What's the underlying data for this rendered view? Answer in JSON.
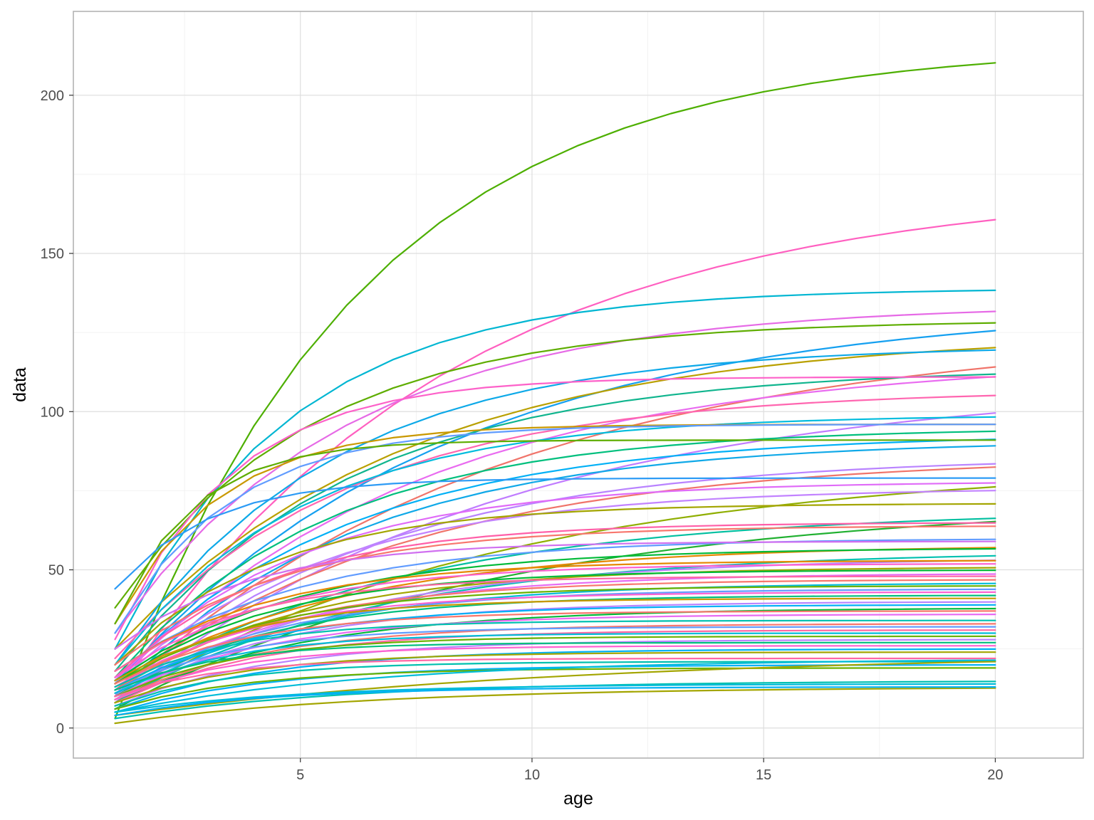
{
  "chart_data": {
    "type": "line",
    "title": "",
    "xlabel": "age",
    "ylabel": "data",
    "xlim": [
      0.1,
      21.9
    ],
    "ylim": [
      -9.5,
      226.5
    ],
    "x_ticks": [
      5,
      10,
      15,
      20
    ],
    "y_ticks": [
      0,
      50,
      100,
      150,
      200
    ],
    "x_tick_labels": [
      "5",
      "10",
      "15",
      "20"
    ],
    "y_tick_labels": [
      "0",
      "50",
      "100",
      "150",
      "200"
    ],
    "grid": true,
    "legend": "none",
    "x": [
      1,
      2,
      3,
      4,
      5,
      6,
      7,
      8,
      9,
      10,
      11,
      12,
      13,
      14,
      15,
      16,
      17,
      18,
      19,
      20
    ],
    "palette": [
      "#F8766D",
      "#E58700",
      "#C99800",
      "#A3A500",
      "#6BB100",
      "#00BA38",
      "#00BF7D",
      "#00C0AF",
      "#00BCD8",
      "#00B0F6",
      "#619CFF",
      "#B983FF",
      "#E76BF3",
      "#FD61D1",
      "#FF67A4"
    ],
    "curves": [
      {
        "start": 3,
        "end": 216,
        "k": 0.19,
        "color": "#4DAF00"
      },
      {
        "start": 10,
        "end": 172,
        "k": 0.14,
        "color": "#FF5FC0"
      },
      {
        "start": 25,
        "end": 139,
        "k": 0.27,
        "color": "#00B6D2"
      },
      {
        "start": 30,
        "end": 134,
        "k": 0.2,
        "color": "#E66AE6"
      },
      {
        "start": 14,
        "end": 134,
        "k": 0.14,
        "color": "#15A0F0"
      },
      {
        "start": 38,
        "end": 129,
        "k": 0.24,
        "color": "#5EAD00"
      },
      {
        "start": 10,
        "end": 126,
        "k": 0.12,
        "color": "#F0746A"
      },
      {
        "start": 25,
        "end": 125,
        "k": 0.16,
        "color": "#B9A000"
      },
      {
        "start": 20,
        "end": 121,
        "k": 0.22,
        "color": "#0DA9E8"
      },
      {
        "start": 14,
        "end": 117,
        "k": 0.15,
        "color": "#E96BF0"
      },
      {
        "start": 18,
        "end": 114,
        "k": 0.2,
        "color": "#10B58E"
      },
      {
        "start": 28,
        "end": 111,
        "k": 0.4,
        "color": "#FD61C9"
      },
      {
        "start": 8,
        "end": 110,
        "k": 0.12,
        "color": "#C07CFF"
      },
      {
        "start": 22,
        "end": 107,
        "k": 0.2,
        "color": "#FF66B0"
      },
      {
        "start": 20,
        "end": 99,
        "k": 0.25,
        "color": "#00BCDD"
      },
      {
        "start": 33,
        "end": 96,
        "k": 0.45,
        "color": "#C99800"
      },
      {
        "start": 30,
        "end": 96,
        "k": 0.4,
        "color": "#619CFF"
      },
      {
        "start": 16,
        "end": 95,
        "k": 0.22,
        "color": "#00BF7D"
      },
      {
        "start": 15,
        "end": 93,
        "k": 0.2,
        "color": "#00B0F6"
      },
      {
        "start": 33,
        "end": 91,
        "k": 0.6,
        "color": "#5EAD00"
      },
      {
        "start": 10,
        "end": 91,
        "k": 0.2,
        "color": "#10A9E8"
      },
      {
        "start": 10,
        "end": 86,
        "k": 0.18,
        "color": "#B983FF"
      },
      {
        "start": 12,
        "end": 86,
        "k": 0.16,
        "color": "#F0746A"
      },
      {
        "start": 8,
        "end": 84,
        "k": 0.12,
        "color": "#8FAE00"
      },
      {
        "start": 44,
        "end": 79,
        "k": 0.5,
        "color": "#2D9BF5"
      },
      {
        "start": 15,
        "end": 78,
        "k": 0.25,
        "color": "#E06BF8"
      },
      {
        "start": 14,
        "end": 76,
        "k": 0.22,
        "color": "#C283FF"
      },
      {
        "start": 20,
        "end": 71,
        "k": 0.3,
        "color": "#A3A500"
      },
      {
        "start": 6,
        "end": 72,
        "k": 0.12,
        "color": "#20B030"
      },
      {
        "start": 12,
        "end": 69,
        "k": 0.16,
        "color": "#00BFA0"
      },
      {
        "start": 16,
        "end": 65,
        "k": 0.3,
        "color": "#FF5FA8"
      },
      {
        "start": 20,
        "end": 64,
        "k": 0.28,
        "color": "#F8766D"
      },
      {
        "start": 18,
        "end": 60,
        "k": 0.25,
        "color": "#619CFF"
      },
      {
        "start": 25,
        "end": 59,
        "k": 0.35,
        "color": "#D070F0"
      },
      {
        "start": 14,
        "end": 58,
        "k": 0.2,
        "color": "#E58700"
      },
      {
        "start": 15,
        "end": 57,
        "k": 0.25,
        "color": "#00BA38"
      },
      {
        "start": 8,
        "end": 56,
        "k": 0.18,
        "color": "#00C0AF"
      },
      {
        "start": 10,
        "end": 54,
        "k": 0.2,
        "color": "#B983FF"
      },
      {
        "start": 18,
        "end": 53,
        "k": 0.3,
        "color": "#E58700"
      },
      {
        "start": 16,
        "end": 52,
        "k": 0.3,
        "color": "#FD61D1"
      },
      {
        "start": 12,
        "end": 51,
        "k": 0.25,
        "color": "#A3A500"
      },
      {
        "start": 14,
        "end": 50,
        "k": 0.3,
        "color": "#00BA38"
      },
      {
        "start": 10,
        "end": 49,
        "k": 0.25,
        "color": "#E76BF3"
      },
      {
        "start": 18,
        "end": 48,
        "k": 0.35,
        "color": "#FF67A4"
      },
      {
        "start": 12,
        "end": 47,
        "k": 0.28,
        "color": "#F8766D"
      },
      {
        "start": 9,
        "end": 46,
        "k": 0.25,
        "color": "#00BCD8"
      },
      {
        "start": 14,
        "end": 45,
        "k": 0.3,
        "color": "#6BB100"
      },
      {
        "start": 11,
        "end": 44,
        "k": 0.28,
        "color": "#619CFF"
      },
      {
        "start": 13,
        "end": 43,
        "k": 0.32,
        "color": "#FD61D1"
      },
      {
        "start": 10,
        "end": 42,
        "k": 0.3,
        "color": "#00BF7D"
      },
      {
        "start": 15,
        "end": 41,
        "k": 0.35,
        "color": "#C99800"
      },
      {
        "start": 9,
        "end": 40,
        "k": 0.28,
        "color": "#B983FF"
      },
      {
        "start": 12,
        "end": 39,
        "k": 0.3,
        "color": "#00B0F6"
      },
      {
        "start": 8,
        "end": 38,
        "k": 0.25,
        "color": "#00BA38"
      },
      {
        "start": 14,
        "end": 37,
        "k": 0.35,
        "color": "#F8766D"
      },
      {
        "start": 10,
        "end": 36,
        "k": 0.3,
        "color": "#E76BF3"
      },
      {
        "start": 13,
        "end": 34,
        "k": 0.4,
        "color": "#00C0AF"
      },
      {
        "start": 9,
        "end": 33,
        "k": 0.3,
        "color": "#F8766D"
      },
      {
        "start": 12,
        "end": 32,
        "k": 0.38,
        "color": "#619CFF"
      },
      {
        "start": 8,
        "end": 31,
        "k": 0.32,
        "color": "#FF67A4"
      },
      {
        "start": 11,
        "end": 30,
        "k": 0.4,
        "color": "#00BCD8"
      },
      {
        "start": 10,
        "end": 29,
        "k": 0.38,
        "color": "#6BB100"
      },
      {
        "start": 7,
        "end": 28,
        "k": 0.3,
        "color": "#B983FF"
      },
      {
        "start": 12,
        "end": 27,
        "k": 0.45,
        "color": "#00BF7D"
      },
      {
        "start": 9,
        "end": 26,
        "k": 0.4,
        "color": "#FD61D1"
      },
      {
        "start": 6,
        "end": 25,
        "k": 0.3,
        "color": "#00B0F6"
      },
      {
        "start": 8,
        "end": 24,
        "k": 0.35,
        "color": "#A3A500"
      },
      {
        "start": 10,
        "end": 22,
        "k": 0.45,
        "color": "#FF67A4"
      },
      {
        "start": 7,
        "end": 21,
        "k": 0.4,
        "color": "#00C0AF"
      },
      {
        "start": 5,
        "end": 20,
        "k": 0.3,
        "color": "#00B0F6"
      },
      {
        "start": 6,
        "end": 19,
        "k": 0.35,
        "color": "#6BB100"
      },
      {
        "start": 4,
        "end": 24,
        "k": 0.1,
        "color": "#A3A500"
      },
      {
        "start": 5,
        "end": 22,
        "k": 0.18,
        "color": "#00BCD8"
      },
      {
        "start": 3,
        "end": 15,
        "k": 0.2,
        "color": "#00C0AF"
      },
      {
        "start": 5,
        "end": 14,
        "k": 0.25,
        "color": "#00BCD8"
      },
      {
        "start": 1.5,
        "end": 13,
        "k": 0.18,
        "color": "#A3A500"
      },
      {
        "start": 4,
        "end": 13,
        "k": 0.3,
        "color": "#00B0F6"
      }
    ]
  }
}
